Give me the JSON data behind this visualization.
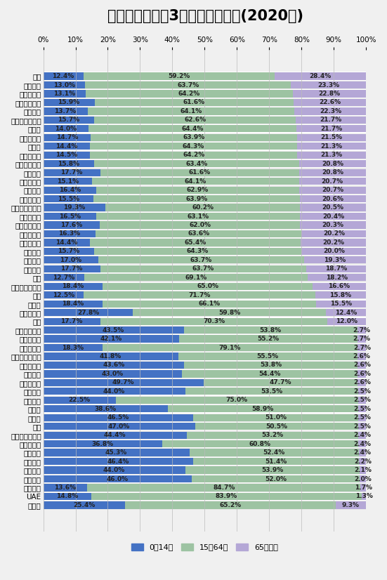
{
  "title": "諸外国の年齢・3区分別人口割合(2020年)",
  "categories": [
    "日本",
    "イタリア",
    "ポルトガル",
    "フィンランド",
    "ギリシャ",
    "マルティニーク",
    "ドイツ",
    "ブルガリア",
    "マルタ",
    "クロアチア",
    "プエルトリコ",
    "フランス",
    "スロベニア",
    "ラトビア",
    "リトアニア",
    "ヴァージン諸島",
    "エストニア",
    "スウェーデン",
    "デンマーク",
    "ハンガリー",
    "オランダ",
    "ベルギー",
    "イギリス",
    "香港",
    "アメリカ合衆国",
    "韓国",
    "ロシア",
    "イスラエル",
    "中国",
    "ナイジェリア",
    "カメルーン",
    "バーレーン",
    "アフガニスタン",
    "タンザニア",
    "マラウイ",
    "ニジェール",
    "ガンビア",
    "オマーン",
    "ケニア",
    "チャド",
    "マリ",
    "ブルキナファソ",
    "赤道ギアナ",
    "ブルンジ",
    "アンゴラ",
    "ザンビア",
    "ウガンダ",
    "カタール",
    "UAE",
    "全世界"
  ],
  "child": [
    12.4,
    13.0,
    13.1,
    15.9,
    13.7,
    15.7,
    14.0,
    14.7,
    14.4,
    14.5,
    15.8,
    17.7,
    15.1,
    16.4,
    15.5,
    19.3,
    16.5,
    17.6,
    16.3,
    14.4,
    15.7,
    17.0,
    17.7,
    12.7,
    18.4,
    12.5,
    18.4,
    27.8,
    17.7,
    43.5,
    42.1,
    18.3,
    41.8,
    43.6,
    43.0,
    49.7,
    44.0,
    22.5,
    38.6,
    46.5,
    47.0,
    44.4,
    36.8,
    45.3,
    46.4,
    44.0,
    46.0,
    13.6,
    14.8,
    25.4
  ],
  "adult": [
    59.2,
    63.7,
    64.2,
    61.6,
    64.1,
    62.6,
    64.4,
    63.9,
    64.3,
    64.2,
    63.4,
    61.6,
    64.1,
    62.9,
    63.9,
    60.2,
    63.1,
    62.0,
    63.6,
    65.4,
    64.3,
    63.7,
    63.7,
    69.1,
    65.0,
    71.7,
    66.1,
    59.8,
    70.3,
    53.8,
    55.2,
    79.1,
    55.5,
    53.8,
    54.4,
    47.7,
    53.5,
    75.0,
    58.9,
    51.0,
    50.5,
    53.2,
    60.8,
    52.4,
    51.4,
    53.9,
    52.0,
    84.7,
    83.9,
    65.2
  ],
  "elderly": [
    28.4,
    23.3,
    22.8,
    22.6,
    22.3,
    21.7,
    21.7,
    21.5,
    21.3,
    21.3,
    20.8,
    20.8,
    20.7,
    20.7,
    20.6,
    20.5,
    20.4,
    20.3,
    20.2,
    20.2,
    20.0,
    19.3,
    18.7,
    18.2,
    16.6,
    15.8,
    15.5,
    12.4,
    12.0,
    2.7,
    2.7,
    2.7,
    2.6,
    2.6,
    2.6,
    2.6,
    2.5,
    2.5,
    2.5,
    2.5,
    2.5,
    2.4,
    2.4,
    2.4,
    2.2,
    2.1,
    2.0,
    1.7,
    1.3,
    9.3
  ],
  "color_child": "#4472c4",
  "color_adult": "#9dc3a2",
  "color_elderly": "#b4a7d6",
  "bg_color": "#f0f0f0",
  "row_color_odd": "#ffffff",
  "row_color_even": "#e8e8e8",
  "legend_labels": [
    "0〜14歳",
    "15〜64歳",
    "65歳以上"
  ],
  "title_fontsize": 15,
  "label_fontsize": 7.5,
  "bar_value_fontsize": 6.5
}
